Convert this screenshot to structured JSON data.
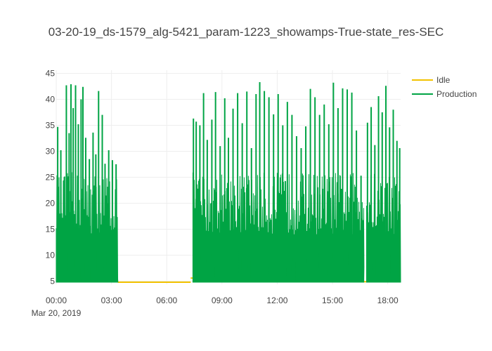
{
  "chart_data": {
    "type": "line",
    "title": "03-20-19_ds-1579_alg-5421_param-1223_showamps-True-state_res-SEC",
    "xlabel": "",
    "ylabel": "",
    "x_start": "2019-03-20 00:00",
    "xlim_hours": [
      0,
      18.7
    ],
    "x_ticks": [
      "00:00",
      "03:00",
      "06:00",
      "09:00",
      "12:00",
      "15:00",
      "18:00"
    ],
    "x_tick_hours": [
      0,
      3,
      6,
      9,
      12,
      15,
      18
    ],
    "x_date_label": "Mar 20, 2019",
    "ylim": [
      4.4,
      45.6
    ],
    "y_ticks": [
      5,
      10,
      15,
      20,
      25,
      30,
      35,
      40,
      45
    ],
    "grid": true,
    "legend_position": "top-right",
    "series": [
      {
        "name": "Idle",
        "color": "#f2c200",
        "segments": [
          {
            "start": 3.35,
            "end": 7.3,
            "level": 4.8
          },
          {
            "start": 7.3,
            "end": 7.42,
            "level": 5.6
          },
          {
            "start": 16.7,
            "end": 16.85,
            "level": 4.9
          }
        ]
      },
      {
        "name": "Production",
        "color": "#00a444",
        "base": 4.8,
        "intervals": [
          {
            "start": 0.0,
            "end": 3.35
          },
          {
            "start": 7.42,
            "end": 16.7
          },
          {
            "start": 16.85,
            "end": 18.7
          }
        ],
        "peaks": [
          {
            "x": 0.08,
            "y": 34.7
          },
          {
            "x": 0.25,
            "y": 30.2
          },
          {
            "x": 0.45,
            "y": 25.1
          },
          {
            "x": 0.55,
            "y": 42.7
          },
          {
            "x": 0.7,
            "y": 33.5
          },
          {
            "x": 0.8,
            "y": 42.9
          },
          {
            "x": 0.92,
            "y": 38.3
          },
          {
            "x": 1.05,
            "y": 42.7
          },
          {
            "x": 1.2,
            "y": 35.2
          },
          {
            "x": 1.35,
            "y": 40.0
          },
          {
            "x": 1.45,
            "y": 42.4
          },
          {
            "x": 1.6,
            "y": 32.6
          },
          {
            "x": 1.8,
            "y": 28.5
          },
          {
            "x": 2.0,
            "y": 33.6
          },
          {
            "x": 2.15,
            "y": 29.4
          },
          {
            "x": 2.3,
            "y": 41.6
          },
          {
            "x": 2.5,
            "y": 37.0
          },
          {
            "x": 2.65,
            "y": 27.6
          },
          {
            "x": 2.85,
            "y": 30.2
          },
          {
            "x": 3.05,
            "y": 28.3
          },
          {
            "x": 3.25,
            "y": 27.5
          },
          {
            "x": 7.45,
            "y": 36.3
          },
          {
            "x": 7.6,
            "y": 35.7
          },
          {
            "x": 7.8,
            "y": 35.0
          },
          {
            "x": 8.0,
            "y": 41.2
          },
          {
            "x": 8.2,
            "y": 32.2
          },
          {
            "x": 8.45,
            "y": 36.1
          },
          {
            "x": 8.65,
            "y": 41.4
          },
          {
            "x": 8.9,
            "y": 31.0
          },
          {
            "x": 9.15,
            "y": 40.2
          },
          {
            "x": 9.35,
            "y": 32.6
          },
          {
            "x": 9.6,
            "y": 38.2
          },
          {
            "x": 9.85,
            "y": 41.2
          },
          {
            "x": 10.1,
            "y": 35.4
          },
          {
            "x": 10.35,
            "y": 41.5
          },
          {
            "x": 10.6,
            "y": 30.6
          },
          {
            "x": 10.85,
            "y": 41.0
          },
          {
            "x": 11.05,
            "y": 43.3
          },
          {
            "x": 11.3,
            "y": 41.6
          },
          {
            "x": 11.55,
            "y": 40.4
          },
          {
            "x": 11.8,
            "y": 37.1
          },
          {
            "x": 12.05,
            "y": 41.0
          },
          {
            "x": 12.3,
            "y": 35.0
          },
          {
            "x": 12.55,
            "y": 39.5
          },
          {
            "x": 12.8,
            "y": 37.0
          },
          {
            "x": 13.05,
            "y": 32.9
          },
          {
            "x": 13.3,
            "y": 30.6
          },
          {
            "x": 13.55,
            "y": 34.8
          },
          {
            "x": 13.8,
            "y": 42.0
          },
          {
            "x": 14.05,
            "y": 40.4
          },
          {
            "x": 14.3,
            "y": 37.0
          },
          {
            "x": 14.55,
            "y": 39.0
          },
          {
            "x": 14.8,
            "y": 35.2
          },
          {
            "x": 15.05,
            "y": 43.2
          },
          {
            "x": 15.3,
            "y": 38.3
          },
          {
            "x": 15.55,
            "y": 42.1
          },
          {
            "x": 15.8,
            "y": 41.9
          },
          {
            "x": 16.05,
            "y": 41.3
          },
          {
            "x": 16.3,
            "y": 34.0
          },
          {
            "x": 16.55,
            "y": 25.3
          },
          {
            "x": 16.9,
            "y": 35.5
          },
          {
            "x": 17.1,
            "y": 38.5
          },
          {
            "x": 17.3,
            "y": 31.2
          },
          {
            "x": 17.5,
            "y": 40.6
          },
          {
            "x": 17.7,
            "y": 37.5
          },
          {
            "x": 17.9,
            "y": 42.6
          },
          {
            "x": 18.1,
            "y": 34.6
          },
          {
            "x": 18.3,
            "y": 38.0
          },
          {
            "x": 18.5,
            "y": 32.0
          },
          {
            "x": 18.65,
            "y": 30.6
          }
        ]
      }
    ]
  }
}
